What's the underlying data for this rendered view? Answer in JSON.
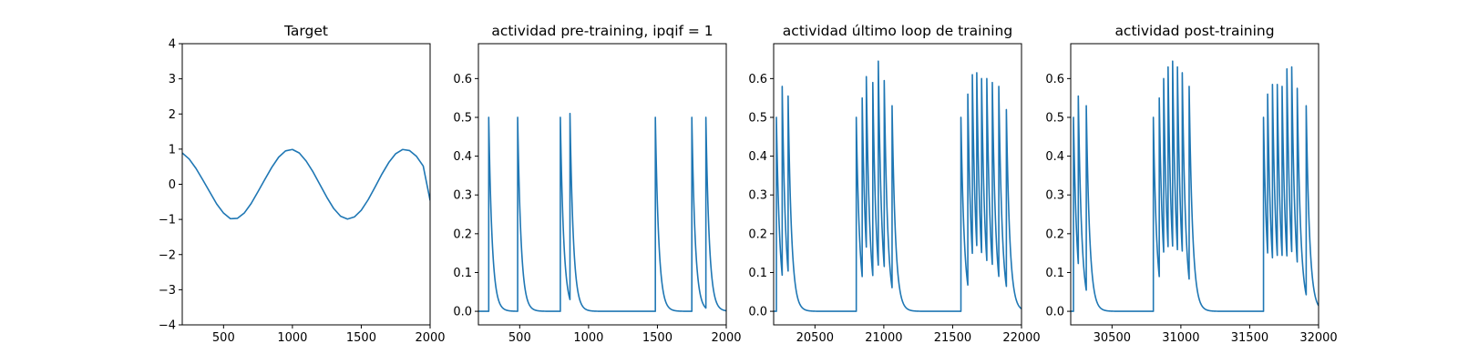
{
  "chart_data": [
    {
      "type": "line",
      "title": "Target",
      "xlabel": "",
      "ylabel": "",
      "xlim": [
        200,
        2000
      ],
      "ylim": [
        -4,
        4
      ],
      "xticks": [
        500,
        1000,
        1500,
        2000
      ],
      "yticks": [
        -4,
        -3,
        -2,
        -1,
        0,
        1,
        2,
        3,
        4
      ],
      "grid": false,
      "color": "#1f77b4",
      "series": [
        {
          "x": [
            200,
            250,
            300,
            350,
            400,
            450,
            500,
            550,
            600,
            650,
            700,
            750,
            800,
            850,
            900,
            950,
            1000,
            1050,
            1100,
            1150,
            1200,
            1250,
            1300,
            1350,
            1400,
            1450,
            1500,
            1550,
            1600,
            1650,
            1700,
            1750,
            1800,
            1850,
            1900,
            1950,
            2000
          ],
          "y": [
            0.89,
            0.72,
            0.45,
            0.12,
            -0.22,
            -0.56,
            -0.82,
            -0.98,
            -0.97,
            -0.82,
            -0.55,
            -0.21,
            0.14,
            0.48,
            0.77,
            0.95,
            0.99,
            0.89,
            0.66,
            0.35,
            -0.01,
            -0.37,
            -0.69,
            -0.91,
            -0.99,
            -0.93,
            -0.74,
            -0.44,
            -0.08,
            0.29,
            0.62,
            0.87,
            0.99,
            0.96,
            0.8,
            0.52,
            -0.46
          ]
        }
      ]
    },
    {
      "type": "line",
      "title": "actividad pre-training, ipqif = 1",
      "xlabel": "",
      "ylabel": "",
      "xlim": [
        200,
        2000
      ],
      "ylim": [
        -0.035,
        0.69
      ],
      "xticks": [
        500,
        1000,
        1500,
        2000
      ],
      "yticks": [
        0.0,
        0.1,
        0.2,
        0.3,
        0.4,
        0.5,
        0.6
      ],
      "ytick_labels": [
        "0.0",
        "0.1",
        "0.2",
        "0.3",
        "0.4",
        "0.5",
        "0.6"
      ],
      "grid": false,
      "color": "#1f77b4",
      "decay": 25,
      "spikes": [
        {
          "x": 275,
          "peak": 0.5
        },
        {
          "x": 485,
          "peak": 0.5
        },
        {
          "x": 795,
          "peak": 0.5
        },
        {
          "x": 865,
          "peak": 0.51
        },
        {
          "x": 1485,
          "peak": 0.5
        },
        {
          "x": 1750,
          "peak": 0.5
        },
        {
          "x": 1852,
          "peak": 0.5
        }
      ]
    },
    {
      "type": "line",
      "title": "actividad último loop de training",
      "xlabel": "",
      "ylabel": "",
      "xlim": [
        20200,
        22000
      ],
      "ylim": [
        -0.035,
        0.69
      ],
      "xticks": [
        20500,
        21000,
        21500,
        22000
      ],
      "yticks": [
        0.0,
        0.1,
        0.2,
        0.3,
        0.4,
        0.5,
        0.6
      ],
      "ytick_labels": [
        "0.0",
        "0.1",
        "0.2",
        "0.3",
        "0.4",
        "0.5",
        "0.6"
      ],
      "grid": false,
      "color": "#1f77b4",
      "decay": 25,
      "spikes": [
        {
          "x": 20220,
          "peak": 0.5
        },
        {
          "x": 20262,
          "peak": 0.58
        },
        {
          "x": 20305,
          "peak": 0.555
        },
        {
          "x": 20800,
          "peak": 0.5
        },
        {
          "x": 20843,
          "peak": 0.55
        },
        {
          "x": 20873,
          "peak": 0.605
        },
        {
          "x": 20920,
          "peak": 0.59
        },
        {
          "x": 20960,
          "peak": 0.645
        },
        {
          "x": 21003,
          "peak": 0.595
        },
        {
          "x": 21060,
          "peak": 0.53
        },
        {
          "x": 21560,
          "peak": 0.5
        },
        {
          "x": 21610,
          "peak": 0.56
        },
        {
          "x": 21643,
          "peak": 0.61
        },
        {
          "x": 21675,
          "peak": 0.615
        },
        {
          "x": 21710,
          "peak": 0.6
        },
        {
          "x": 21748,
          "peak": 0.6
        },
        {
          "x": 21788,
          "peak": 0.59
        },
        {
          "x": 21835,
          "peak": 0.58
        },
        {
          "x": 21890,
          "peak": 0.52
        }
      ]
    },
    {
      "type": "line",
      "title": "actividad post-training",
      "xlabel": "",
      "ylabel": "",
      "xlim": [
        30200,
        32000
      ],
      "ylim": [
        -0.035,
        0.69
      ],
      "xticks": [
        30500,
        31000,
        31500,
        32000
      ],
      "yticks": [
        0.0,
        0.1,
        0.2,
        0.3,
        0.4,
        0.5,
        0.6
      ],
      "ytick_labels": [
        "0.0",
        "0.1",
        "0.2",
        "0.3",
        "0.4",
        "0.5",
        "0.6"
      ],
      "grid": false,
      "color": "#1f77b4",
      "decay": 25,
      "spikes": [
        {
          "x": 30220,
          "peak": 0.5
        },
        {
          "x": 30255,
          "peak": 0.555
        },
        {
          "x": 30313,
          "peak": 0.53
        },
        {
          "x": 30800,
          "peak": 0.5
        },
        {
          "x": 30843,
          "peak": 0.55
        },
        {
          "x": 30875,
          "peak": 0.6
        },
        {
          "x": 30907,
          "peak": 0.63
        },
        {
          "x": 30940,
          "peak": 0.645
        },
        {
          "x": 30975,
          "peak": 0.63
        },
        {
          "x": 31010,
          "peak": 0.615
        },
        {
          "x": 31060,
          "peak": 0.58
        },
        {
          "x": 31600,
          "peak": 0.5
        },
        {
          "x": 31630,
          "peak": 0.56
        },
        {
          "x": 31665,
          "peak": 0.585
        },
        {
          "x": 31700,
          "peak": 0.585
        },
        {
          "x": 31735,
          "peak": 0.58
        },
        {
          "x": 31770,
          "peak": 0.625
        },
        {
          "x": 31805,
          "peak": 0.63
        },
        {
          "x": 31845,
          "peak": 0.575
        },
        {
          "x": 31910,
          "peak": 0.53
        }
      ]
    }
  ]
}
